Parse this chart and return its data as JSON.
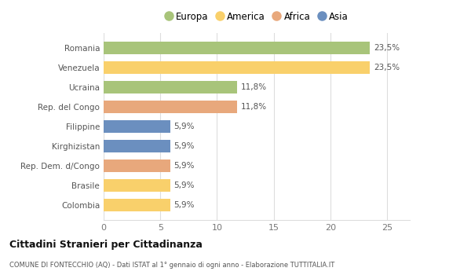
{
  "categories": [
    "Colombia",
    "Brasile",
    "Rep. Dem. d/Congo",
    "Kirghizistan",
    "Filippine",
    "Rep. del Congo",
    "Ucraina",
    "Venezuela",
    "Romania"
  ],
  "values": [
    5.9,
    5.9,
    5.9,
    5.9,
    5.9,
    11.8,
    11.8,
    23.5,
    23.5
  ],
  "colors": [
    "#f9d06b",
    "#f9d06b",
    "#e8a87c",
    "#6b8fbf",
    "#6b8fbf",
    "#e8a87c",
    "#a8c47a",
    "#f9d06b",
    "#a8c47a"
  ],
  "labels": [
    "5,9%",
    "5,9%",
    "5,9%",
    "5,9%",
    "5,9%",
    "11,8%",
    "11,8%",
    "23,5%",
    "23,5%"
  ],
  "legend": [
    {
      "label": "Europa",
      "color": "#a8c47a"
    },
    {
      "label": "America",
      "color": "#f9d06b"
    },
    {
      "label": "Africa",
      "color": "#e8a87c"
    },
    {
      "label": "Asia",
      "color": "#6b8fbf"
    }
  ],
  "xlim": [
    0,
    27
  ],
  "xticks": [
    0,
    5,
    10,
    15,
    20,
    25
  ],
  "title": "Cittadini Stranieri per Cittadinanza",
  "subtitle": "COMUNE DI FONTECCHIO (AQ) - Dati ISTAT al 1° gennaio di ogni anno - Elaborazione TUTTITALIA.IT",
  "background_color": "#ffffff",
  "grid_color": "#dddddd",
  "bar_height": 0.65
}
